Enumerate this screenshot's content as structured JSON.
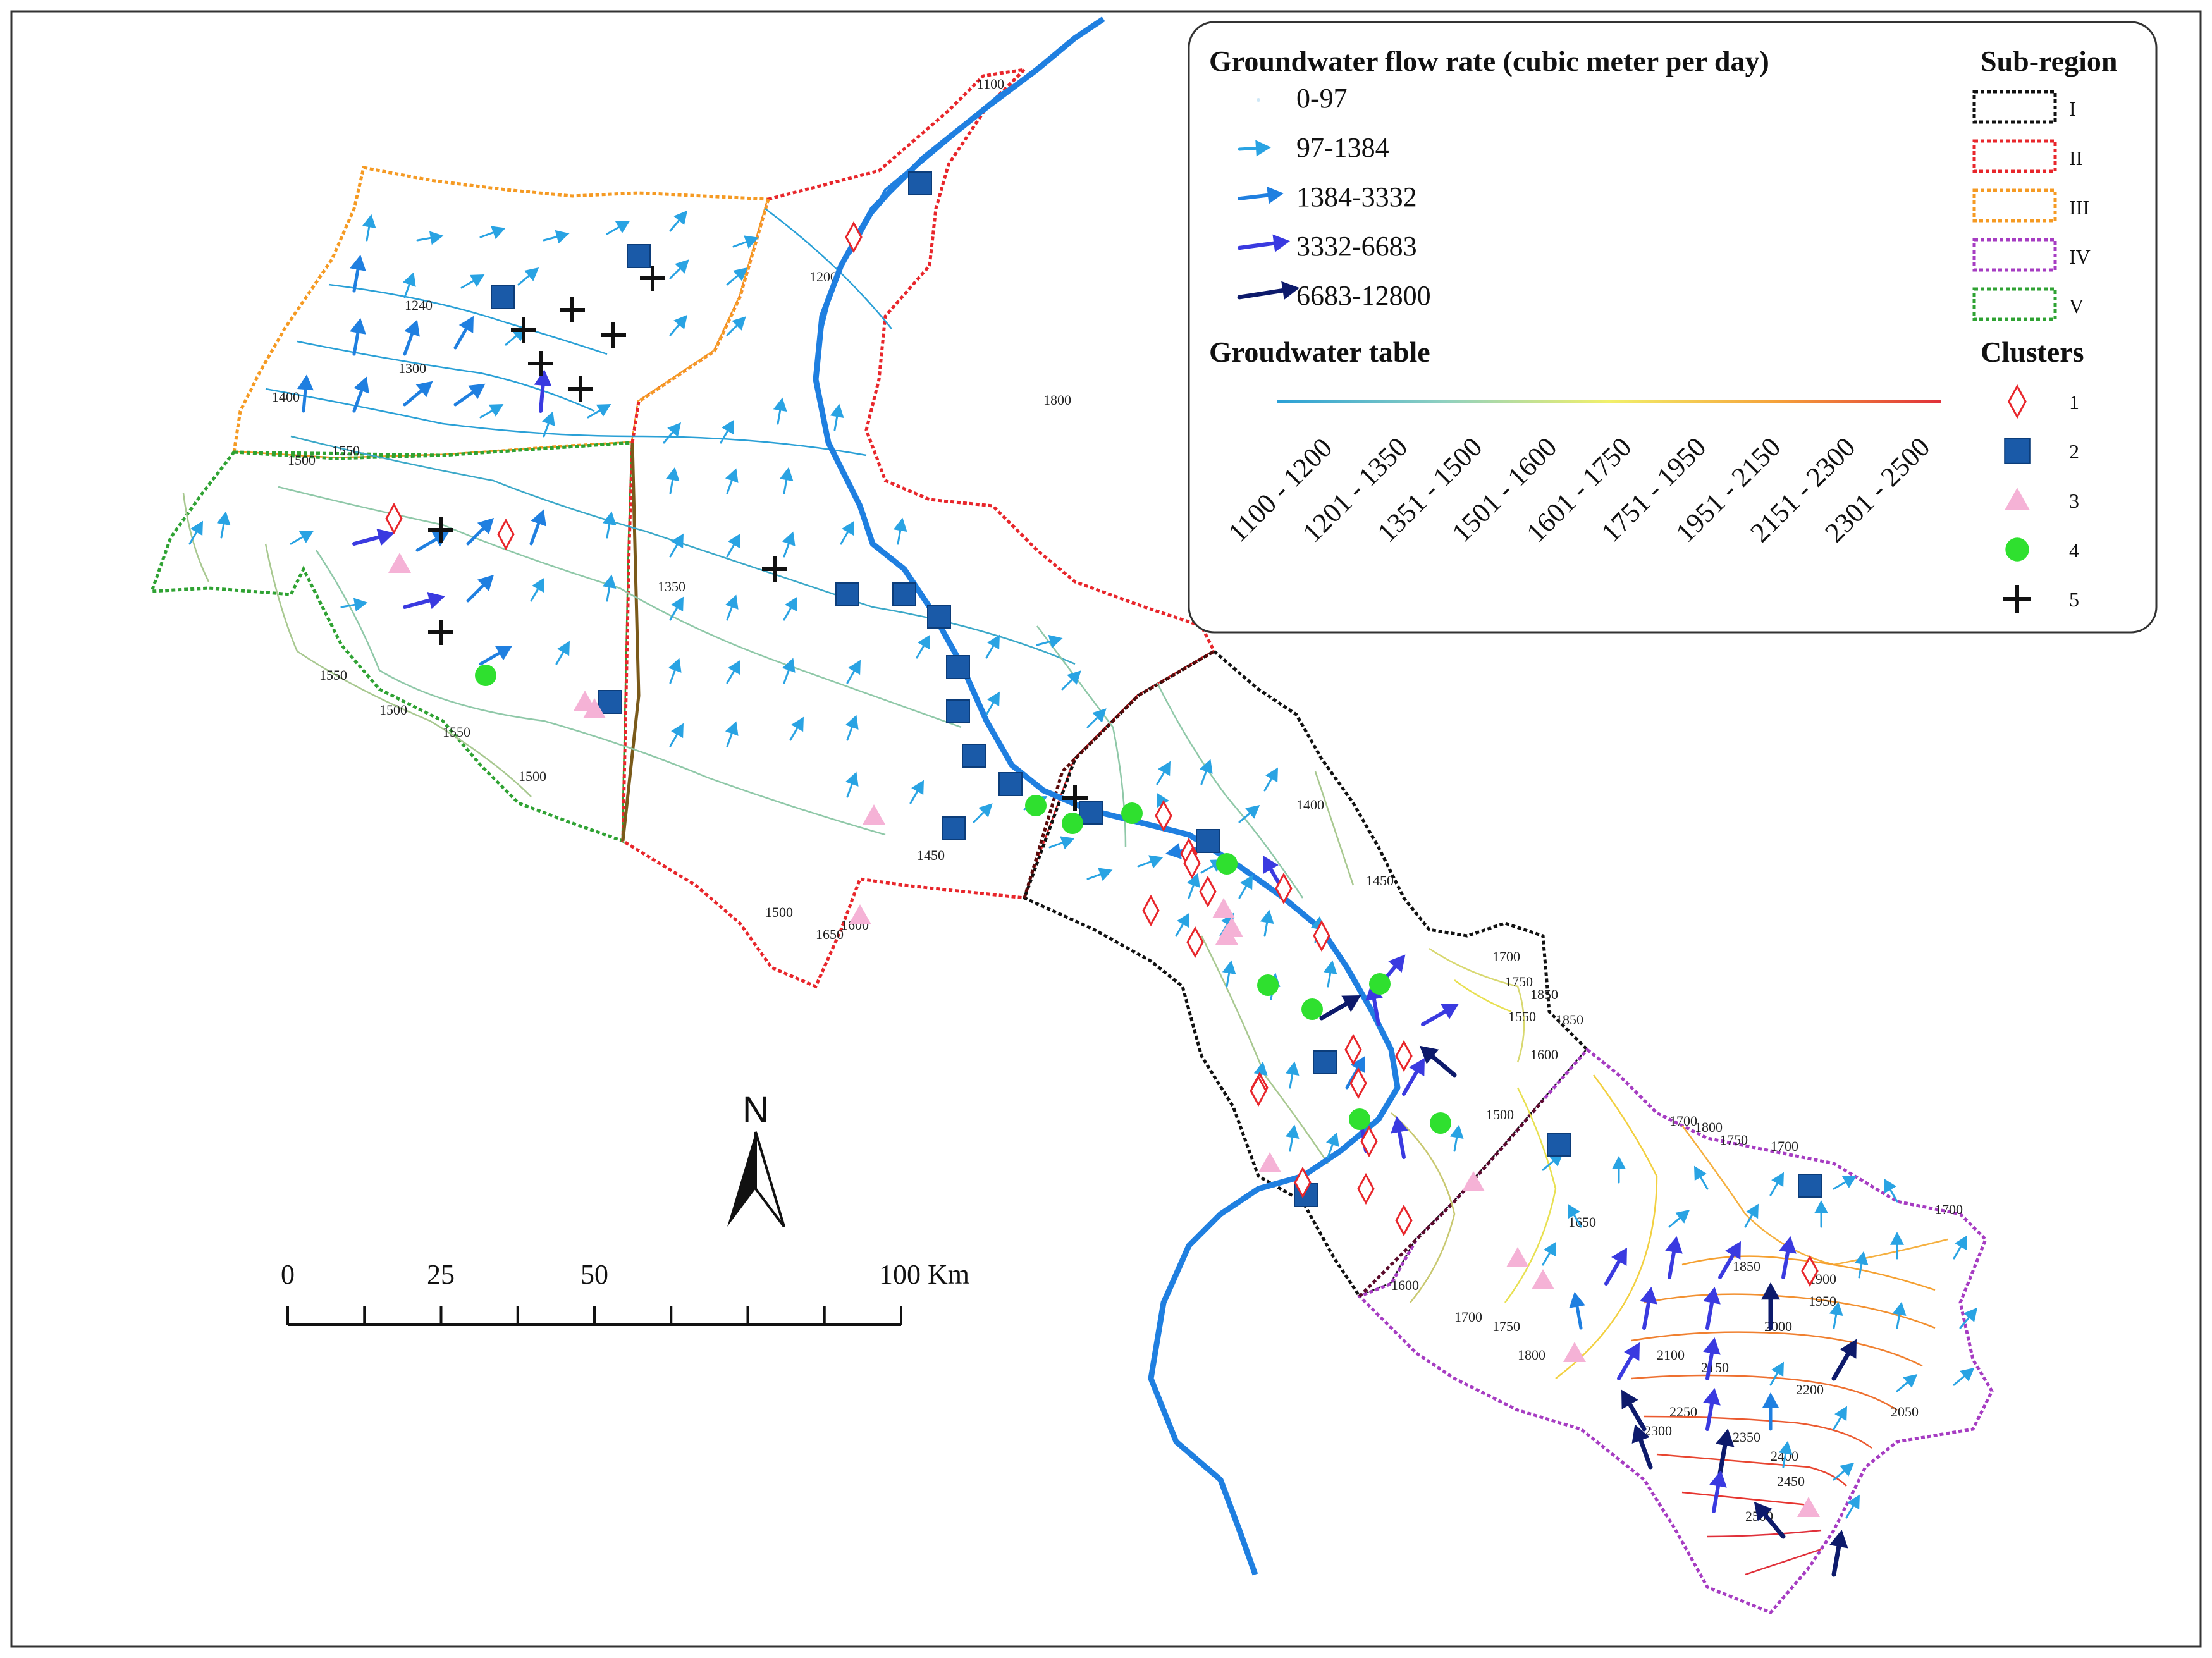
{
  "map": {
    "north_label": "N",
    "scale": {
      "labels": [
        "0",
        "25",
        "50",
        "100 Km"
      ]
    }
  },
  "legend": {
    "flow_title": "Groundwater flow rate (cubic meter per day)",
    "flow_classes": [
      {
        "label": "0-97",
        "color": "#cfe8f7"
      },
      {
        "label": "97-1384",
        "color": "#29a3e3"
      },
      {
        "label": "1384-3332",
        "color": "#1f7fe0"
      },
      {
        "label": "3332-6683",
        "color": "#3a3ae0"
      },
      {
        "label": "6683-12800",
        "color": "#0d1a6b"
      }
    ],
    "table_title": "Groudwater table",
    "table_classes": [
      "1100 - 1200",
      "1201 - 1350",
      "1351 - 1500",
      "1501 - 1600",
      "1601 - 1750",
      "1751 - 1950",
      "1951 - 2150",
      "2151 - 2300",
      "2301 - 2500"
    ],
    "subregion_title": "Sub-region",
    "subregions": [
      {
        "label": "I",
        "color": "#111111"
      },
      {
        "label": "II",
        "color": "#e8262b"
      },
      {
        "label": "III",
        "color": "#f59a23"
      },
      {
        "label": "IV",
        "color": "#a63cc2"
      },
      {
        "label": "V",
        "color": "#2fa233"
      }
    ],
    "clusters_title": "Clusters",
    "clusters": [
      {
        "label": "1",
        "symbol": "diamond-open-icon",
        "color": "#e8262b"
      },
      {
        "label": "2",
        "symbol": "square-icon",
        "color": "#1a5aa8"
      },
      {
        "label": "3",
        "symbol": "triangle-icon",
        "color": "#f5b2d6"
      },
      {
        "label": "4",
        "symbol": "circle-icon",
        "color": "#2fe02f"
      },
      {
        "label": "5",
        "symbol": "plus-icon",
        "color": "#111111"
      }
    ]
  },
  "contours": {
    "labels": [
      "1100",
      "1200",
      "1240",
      "1300",
      "1350",
      "1400",
      "1450",
      "1500",
      "1550",
      "1600",
      "1650",
      "1700",
      "1750",
      "1800",
      "1850",
      "1900",
      "1950",
      "2000",
      "2050",
      "2100",
      "2150",
      "2200",
      "2250",
      "2300",
      "2350",
      "2400",
      "2450",
      "2500"
    ]
  }
}
